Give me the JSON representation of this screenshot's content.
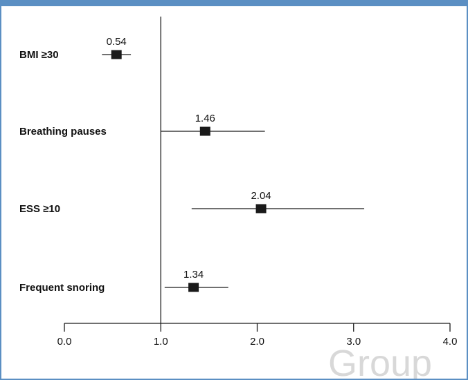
{
  "chart_data": {
    "type": "forest",
    "categories": [
      "BMI ≥30",
      "Breathing pauses",
      "ESS ≥10",
      "Frequent snoring"
    ],
    "estimates": [
      0.54,
      1.46,
      2.04,
      1.34
    ],
    "estimate_labels": [
      "0.54",
      "1.46",
      "2.04",
      "1.34"
    ],
    "ci_lower": [
      0.39,
      1.0,
      1.32,
      1.04
    ],
    "ci_upper": [
      0.69,
      2.08,
      3.11,
      1.7
    ],
    "reference_line": 1.0,
    "xlim": [
      0.0,
      4.0
    ],
    "xticks": [
      0.0,
      1.0,
      2.0,
      3.0,
      4.0
    ],
    "xtick_labels": [
      "0.0",
      "1.0",
      "2.0",
      "3.0",
      "4.0"
    ],
    "title": "",
    "xlabel": "",
    "ylabel": "",
    "grid": false,
    "colors": {
      "marker": "#1a1a1a",
      "line": "#1a1a1a",
      "frame": "#5b8fc3",
      "watermark": "#d8d8d8"
    }
  },
  "watermark_text": "Group"
}
